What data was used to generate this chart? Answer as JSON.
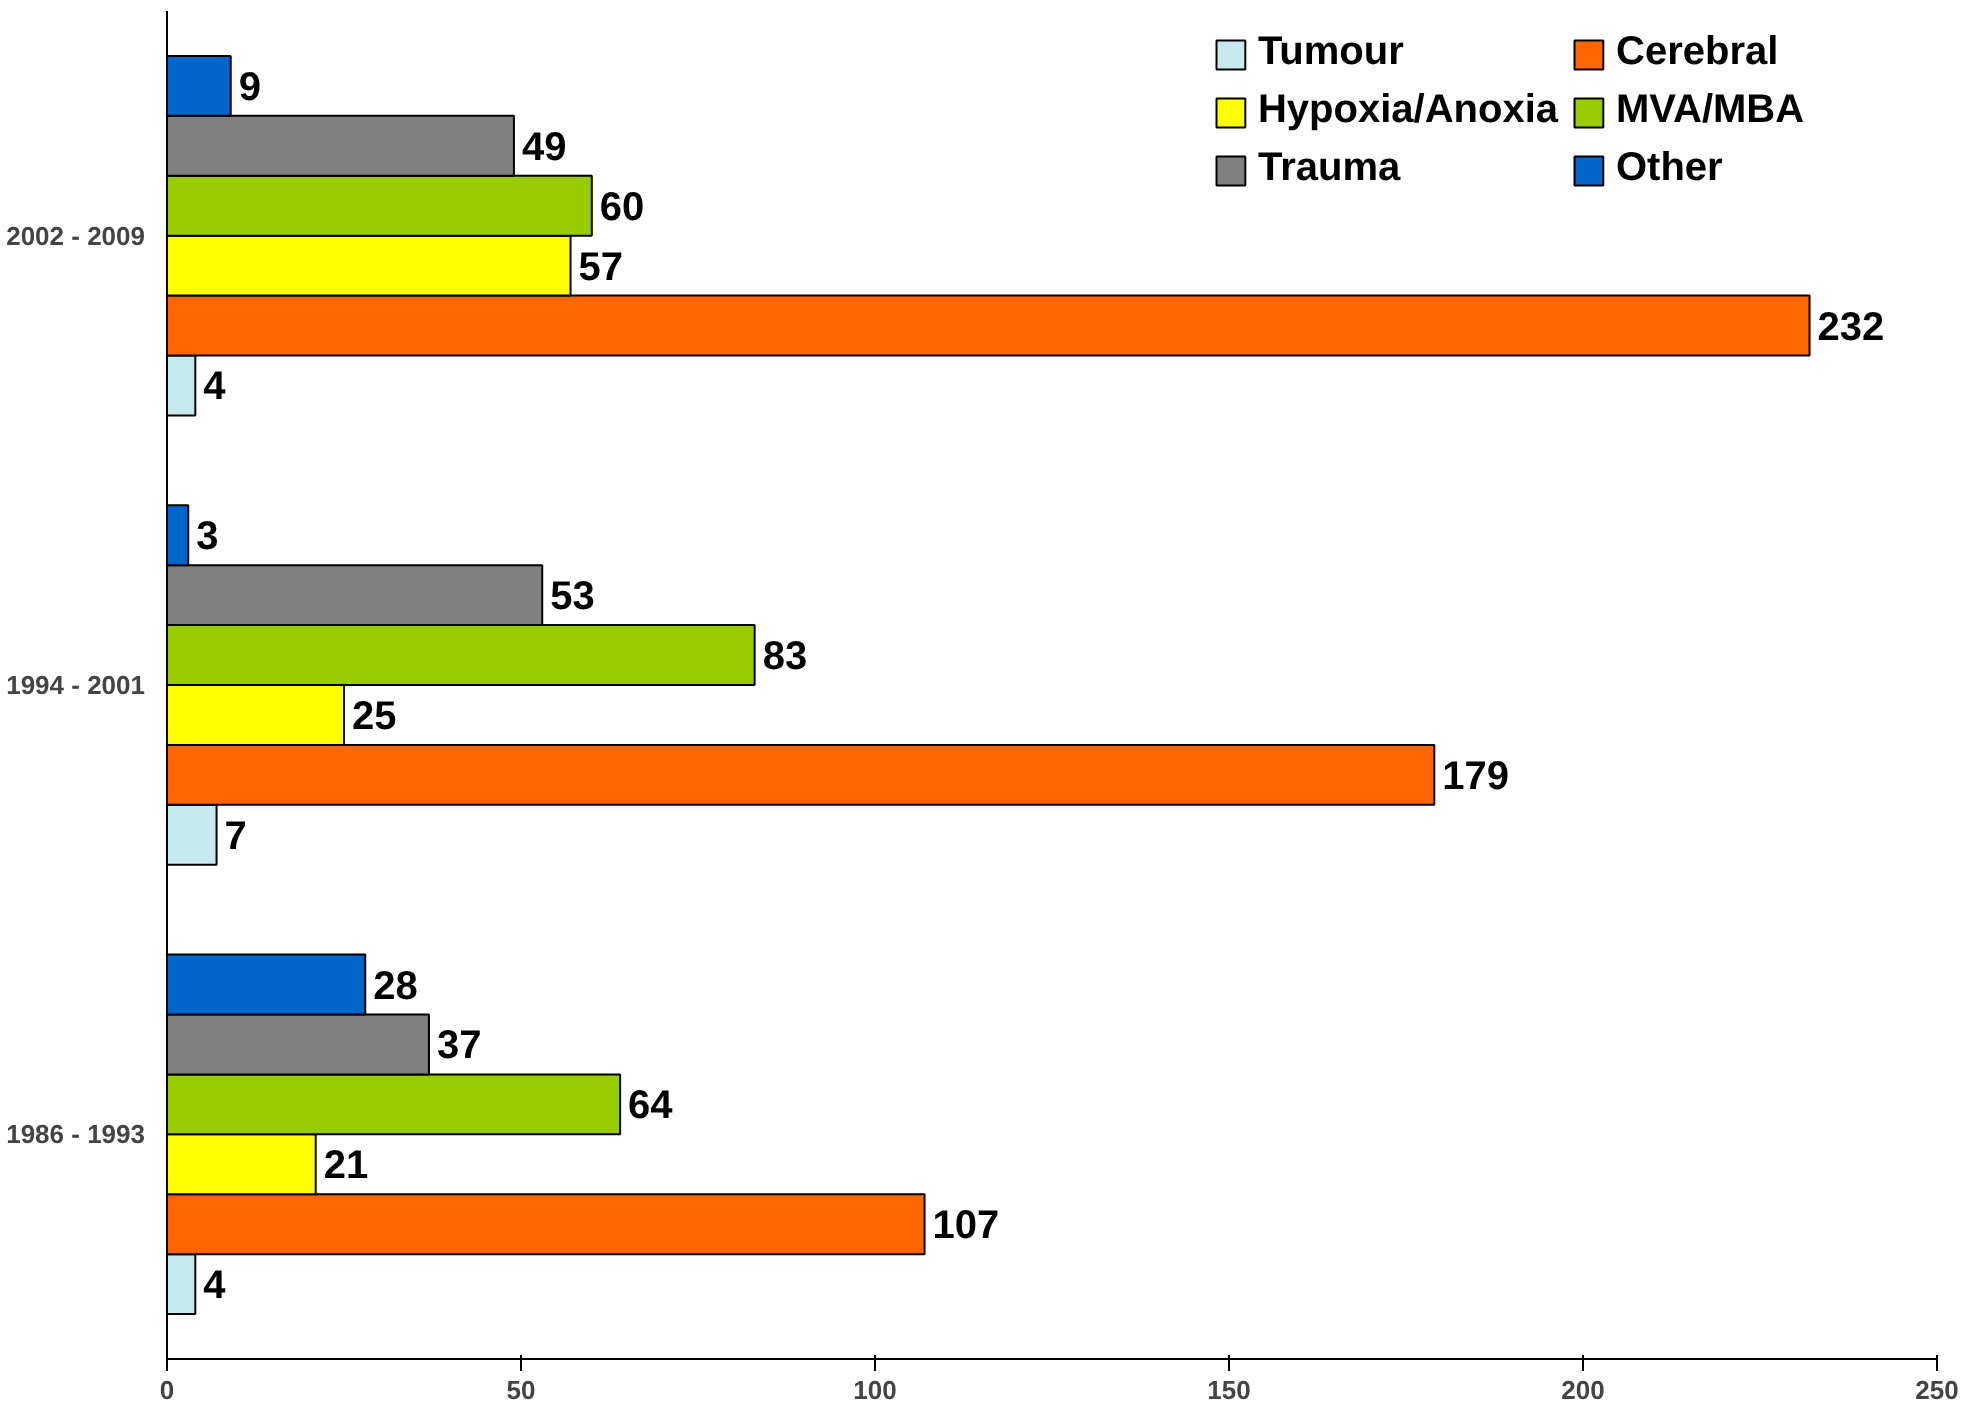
{
  "chart_data": {
    "type": "bar",
    "orientation": "horizontal",
    "categories": [
      "2002 - 2009",
      "1994 - 2001",
      "1986 - 1993"
    ],
    "series": [
      {
        "name": "Tumour",
        "color": "#c6eaee",
        "values": [
          4,
          7,
          4
        ]
      },
      {
        "name": "Cerebral",
        "color": "#ff6600",
        "values": [
          232,
          179,
          107
        ]
      },
      {
        "name": "Hypoxia/Anoxia",
        "color": "#ffff00",
        "values": [
          57,
          25,
          21
        ]
      },
      {
        "name": "MVA/MBA",
        "color": "#99cc00",
        "values": [
          60,
          83,
          64
        ]
      },
      {
        "name": "Trauma",
        "color": "#808080",
        "values": [
          49,
          53,
          37
        ]
      },
      {
        "name": "Other",
        "color": "#0066cc",
        "values": [
          9,
          3,
          28
        ]
      }
    ],
    "xlim": [
      0,
      250
    ],
    "xticks": [
      0,
      50,
      100,
      150,
      200,
      250
    ],
    "data_labels": true,
    "grid": false,
    "legend": "top right"
  }
}
